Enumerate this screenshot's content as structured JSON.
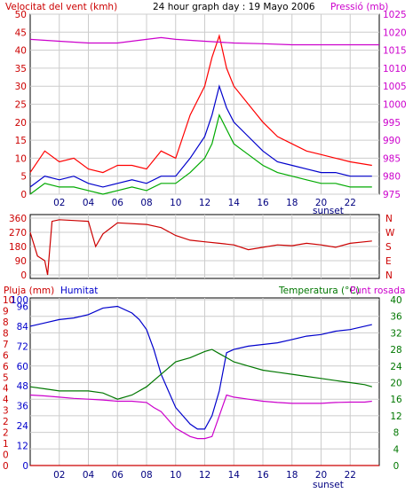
{
  "header": {
    "left_label": "Velocitat del vent (kmh)",
    "center_title": "24 hour graph day : 19 Mayo 2006",
    "right_label": "Pressió (mb)"
  },
  "colors": {
    "wind_gust": "#ff0000",
    "wind_avg": "#0000cc",
    "wind_low": "#00aa00",
    "pressure": "#cc00cc",
    "direction": "#cc0000",
    "humidity": "#0000cc",
    "temperature": "#007700",
    "dewpoint": "#cc00cc",
    "rain": "#cc0000",
    "grid": "#cccccc",
    "border": "#000000"
  },
  "chart_data": [
    {
      "type": "line",
      "name": "wind-pressure",
      "x_ticks": [
        "02",
        "04",
        "06",
        "08",
        "10",
        "12",
        "14",
        "16",
        "18",
        "20",
        "22"
      ],
      "x_annotation": "sunset",
      "xlim": [
        0,
        24
      ],
      "y_left_ticks": [
        "0",
        "5",
        "10",
        "15",
        "20",
        "25",
        "30",
        "35",
        "40",
        "45",
        "50"
      ],
      "ylim_left": [
        0,
        50
      ],
      "y_right_ticks": [
        "975",
        "980",
        "985",
        "990",
        "995",
        "1000",
        "1005",
        "1010",
        "1015",
        "1020",
        "1025"
      ],
      "ylim_right": [
        975,
        1025
      ],
      "series": [
        {
          "key": "gust",
          "x": [
            0,
            1,
            2,
            3,
            4,
            5,
            6,
            7,
            8,
            9,
            10,
            11,
            12,
            12.5,
            13,
            13.5,
            14,
            15,
            16,
            17,
            18,
            19,
            20,
            21,
            22,
            23.5
          ],
          "y": [
            6,
            12,
            9,
            10,
            7,
            6,
            8,
            8,
            7,
            12,
            10,
            22,
            30,
            38,
            44,
            35,
            30,
            25,
            20,
            16,
            14,
            12,
            11,
            10,
            9,
            8
          ]
        },
        {
          "key": "avg",
          "x": [
            0,
            1,
            2,
            3,
            4,
            5,
            6,
            7,
            8,
            9,
            10,
            11,
            12,
            12.5,
            13,
            13.5,
            14,
            15,
            16,
            17,
            18,
            19,
            20,
            21,
            22,
            23.5
          ],
          "y": [
            2,
            5,
            4,
            5,
            3,
            2,
            3,
            4,
            3,
            5,
            5,
            10,
            16,
            22,
            30,
            24,
            20,
            16,
            12,
            9,
            8,
            7,
            6,
            6,
            5,
            5
          ]
        },
        {
          "key": "low",
          "x": [
            0,
            1,
            2,
            3,
            4,
            5,
            6,
            7,
            8,
            9,
            10,
            11,
            12,
            12.5,
            13,
            13.5,
            14,
            15,
            16,
            17,
            18,
            19,
            20,
            21,
            22,
            23.5
          ],
          "y": [
            0,
            3,
            2,
            2,
            1,
            0,
            1,
            2,
            1,
            3,
            3,
            6,
            10,
            14,
            22,
            18,
            14,
            11,
            8,
            6,
            5,
            4,
            3,
            3,
            2,
            2
          ]
        },
        {
          "key": "pressure",
          "x": [
            0,
            2,
            4,
            6,
            8,
            9,
            10,
            12,
            14,
            16,
            18,
            20,
            22,
            24
          ],
          "y": [
            1018,
            1017.5,
            1017,
            1017,
            1018,
            1018.5,
            1018,
            1017.5,
            1017,
            1016.8,
            1016.5,
            1016.5,
            1016.5,
            1016.5
          ]
        }
      ]
    },
    {
      "type": "line",
      "name": "wind-direction",
      "x_ticks": [],
      "xlim": [
        0,
        24
      ],
      "y_ticks": [
        "360",
        "270",
        "180",
        "90",
        "0"
      ],
      "ylim": [
        0,
        360
      ],
      "y_right_ticks": [
        "N",
        "W",
        "S",
        "E",
        "N"
      ],
      "series": [
        {
          "key": "direction",
          "x": [
            0,
            0.5,
            1,
            1.2,
            1.5,
            2,
            3,
            4,
            4.5,
            5,
            6,
            8,
            9,
            10,
            11,
            12,
            13,
            14,
            15,
            16,
            17,
            18,
            19,
            20,
            21,
            22,
            23,
            23.5
          ],
          "y": [
            270,
            120,
            90,
            0,
            340,
            350,
            345,
            340,
            180,
            260,
            330,
            320,
            300,
            250,
            220,
            210,
            200,
            190,
            160,
            175,
            190,
            185,
            200,
            190,
            175,
            200,
            210,
            215
          ]
        }
      ]
    },
    {
      "type": "line",
      "name": "rain-humidity-temperature",
      "x_ticks": [
        "02",
        "04",
        "06",
        "08",
        "10",
        "12",
        "14",
        "16",
        "18",
        "20",
        "22"
      ],
      "x_annotation": "sunset",
      "xlim": [
        0,
        24
      ],
      "y_left_ticks": [
        "0",
        "0",
        "1",
        "2",
        "2",
        "3",
        "4",
        "4",
        "5",
        "6",
        "6",
        "7",
        "8",
        "8",
        "9",
        "10"
      ],
      "y_humidity_ticks": [
        "0",
        "12",
        "24",
        "36",
        "48",
        "60",
        "72",
        "84",
        "96",
        "100"
      ],
      "ylim_humidity": [
        0,
        100
      ],
      "y_right_ticks": [
        "0",
        "4",
        "8",
        "12",
        "16",
        "20",
        "24",
        "28",
        "32",
        "36",
        "40"
      ],
      "ylim_right": [
        0,
        40
      ],
      "labels": {
        "rain": "Pluja (mm)",
        "humidity": "Humitat",
        "temperature": "Temperatura (°C)",
        "dewpoint": "Punt rosada"
      },
      "series": [
        {
          "key": "humidity",
          "x": [
            0,
            1,
            2,
            3,
            4,
            5,
            6,
            7,
            7.5,
            8,
            8.5,
            9,
            9.5,
            10,
            10.5,
            11,
            11.5,
            12,
            12.5,
            13,
            13.5,
            14,
            15,
            16,
            17,
            18,
            19,
            20,
            21,
            22,
            23,
            23.5
          ],
          "y": [
            84,
            86,
            88,
            89,
            91,
            95,
            96,
            92,
            88,
            82,
            70,
            55,
            45,
            35,
            30,
            25,
            22,
            22,
            30,
            45,
            68,
            70,
            72,
            73,
            74,
            76,
            78,
            79,
            81,
            82,
            84,
            85
          ]
        },
        {
          "key": "temperature",
          "x": [
            0,
            1,
            2,
            3,
            4,
            5,
            6,
            7,
            8,
            9,
            10,
            11,
            12,
            12.5,
            13,
            13.5,
            14,
            15,
            16,
            17,
            18,
            19,
            20,
            21,
            22,
            23,
            23.5
          ],
          "y": [
            19,
            18.5,
            18,
            18,
            18,
            17.5,
            16,
            17,
            19,
            22,
            25,
            26,
            27.5,
            28,
            27,
            26,
            25,
            24,
            23,
            22.5,
            22,
            21.5,
            21,
            20.5,
            20,
            19.5,
            19
          ]
        },
        {
          "key": "dewpoint",
          "x": [
            0,
            1,
            2,
            3,
            4,
            5,
            6,
            7,
            8,
            8.5,
            9,
            9.5,
            10,
            11,
            11.5,
            12,
            12.5,
            13,
            13.5,
            14,
            15,
            16,
            17,
            18,
            19,
            20,
            21,
            22,
            23,
            23.5
          ],
          "y": [
            17,
            16.8,
            16.5,
            16.2,
            16,
            15.8,
            15.5,
            15.5,
            15.2,
            14,
            13,
            11,
            9,
            7,
            6.5,
            6.5,
            7,
            12,
            17,
            16.5,
            16,
            15.5,
            15.2,
            15,
            15,
            15,
            15.2,
            15.3,
            15.3,
            15.5
          ]
        },
        {
          "key": "rain",
          "x": [
            0,
            24
          ],
          "y": [
            0,
            0
          ]
        }
      ]
    }
  ]
}
